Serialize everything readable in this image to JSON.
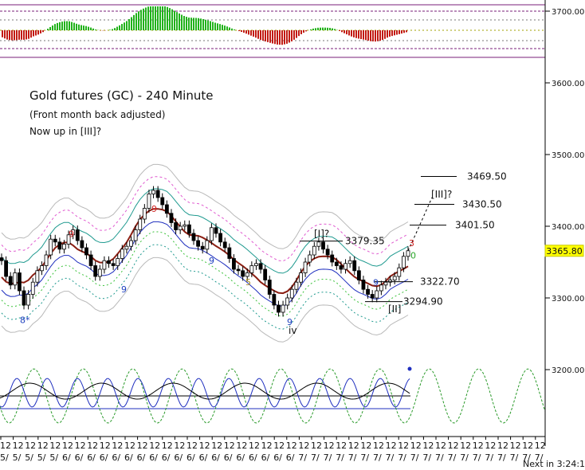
{
  "chart_data": {
    "type": "line",
    "title": "Gold futures (GC) - 240 Minute",
    "subtitle_1": "(Front month back adjusted)",
    "subtitle_2": "Now up in [III]?",
    "y_axis": {
      "ticks": [
        "3700.00",
        "3600.00",
        "3500.00",
        "3400.00",
        "3300.00",
        "3200.00"
      ],
      "tick_values": [
        3700,
        3600,
        3500,
        3400,
        3300,
        3200
      ]
    },
    "ylim": [
      3120,
      3720
    ],
    "last_price": "3365.80",
    "x_tick_fragments": [
      "12",
      "12",
      "12",
      "12",
      "12",
      "12",
      "12",
      "12",
      "12",
      "12",
      "12",
      "12",
      "12",
      "12",
      "12",
      "12",
      "12",
      "12",
      "12",
      "12",
      "12",
      "12",
      "12",
      "12",
      "12",
      "12",
      "12",
      "12",
      "12",
      "12",
      "12",
      "12",
      "12",
      "12",
      "12",
      "12",
      "12",
      "12",
      "12",
      "12",
      "12",
      "12",
      "12",
      "12"
    ],
    "x_tick_fragments_row2": [
      "5/",
      "5/",
      "5/",
      "5/",
      "5/",
      "6/",
      "6/",
      "6/",
      "6/",
      "6/",
      "6/",
      "6/",
      "6/",
      "6/",
      "6/",
      "6/",
      "6/",
      "6/",
      "6/",
      "6/",
      "6/",
      "6/",
      "6/",
      "6/",
      "7/",
      "7/",
      "7/",
      "7/",
      "7/",
      "7/",
      "7/",
      "7/",
      "7/",
      "7/",
      "7/",
      "7/",
      "7/",
      "7/",
      "7/",
      "7/",
      "7/",
      "7/",
      "7/",
      "7/"
    ],
    "countdown": "Next in 3:24:14",
    "price_levels": [
      {
        "label": "3469.50",
        "value": 3469.5
      },
      {
        "label": "3430.50",
        "value": 3430.5
      },
      {
        "label": "3401.50",
        "value": 3401.5
      },
      {
        "label": "3379.35",
        "value": 3379.35
      },
      {
        "label": "3322.70",
        "value": 3322.7
      },
      {
        "label": "3294.90",
        "value": 3294.9
      }
    ],
    "wave_labels": [
      {
        "label": "[III]?",
        "value": 3440
      },
      {
        "label": "[I]?",
        "value": 3385
      },
      {
        "label": "[II]",
        "value": 3280
      },
      {
        "label": "iv",
        "value": 3250
      }
    ],
    "count_labels": [
      {
        "label": "8*",
        "color": "#1d3fbf",
        "value": 3265
      },
      {
        "label": "9",
        "color": "#d22020",
        "value": 3385
      },
      {
        "label": "9",
        "color": "#1d3fbf",
        "value": 3308
      },
      {
        "label": "9",
        "color": "#d22020",
        "value": 3420
      },
      {
        "label": "9",
        "color": "#1d3fbf",
        "value": 3348
      },
      {
        "label": "5",
        "color": "#a88a1a",
        "value": 3318
      },
      {
        "label": "9",
        "color": "#1d3fbf",
        "value": 3262
      },
      {
        "label": "9",
        "color": "#1d3fbf",
        "value": 3317
      },
      {
        "label": "3",
        "color": "#d22020",
        "value": 3372
      },
      {
        "label": "0",
        "color": "#2aa52a",
        "value": 3355
      }
    ],
    "close_series": [
      3352,
      3330,
      3318,
      3335,
      3310,
      3290,
      3305,
      3322,
      3338,
      3345,
      3360,
      3382,
      3378,
      3368,
      3375,
      3388,
      3395,
      3380,
      3370,
      3360,
      3345,
      3330,
      3340,
      3352,
      3348,
      3345,
      3355,
      3368,
      3372,
      3380,
      3395,
      3410,
      3425,
      3445,
      3450,
      3440,
      3430,
      3418,
      3405,
      3395,
      3400,
      3402,
      3390,
      3380,
      3372,
      3368,
      3380,
      3398,
      3390,
      3378,
      3370,
      3355,
      3340,
      3338,
      3330,
      3335,
      3345,
      3348,
      3340,
      3325,
      3305,
      3290,
      3280,
      3290,
      3300,
      3312,
      3322,
      3335,
      3350,
      3360,
      3372,
      3378,
      3368,
      3360,
      3350,
      3345,
      3340,
      3348,
      3352,
      3338,
      3325,
      3312,
      3305,
      3300,
      3310,
      3318,
      3322,
      3325,
      3330,
      3342,
      3358,
      3365.8
    ],
    "projection": [
      3365.8,
      3390,
      3415,
      3440
    ]
  }
}
